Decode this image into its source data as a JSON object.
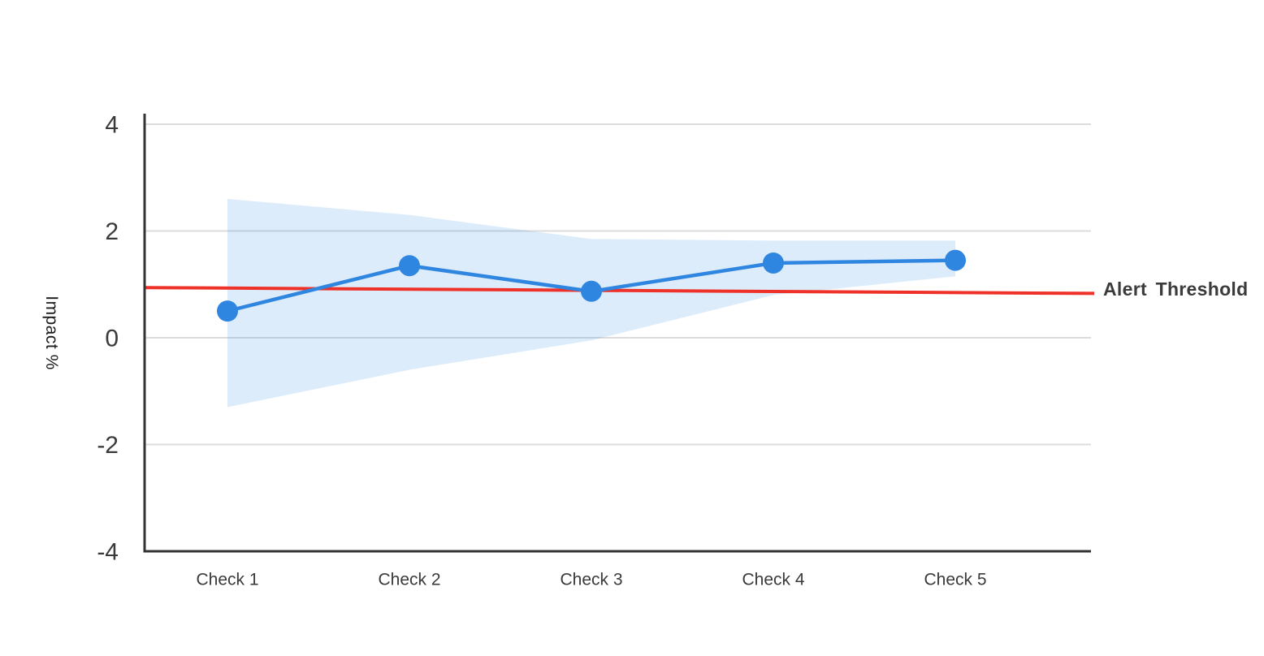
{
  "chart_data": {
    "type": "line",
    "title": "",
    "xlabel": "",
    "ylabel": "Impact %",
    "categories": [
      "Check 1",
      "Check 2",
      "Check 3",
      "Check 4",
      "Check 5"
    ],
    "series": [
      {
        "name": "impact",
        "values": [
          0.5,
          1.35,
          0.87,
          1.4,
          1.45
        ],
        "marker": "circle"
      }
    ],
    "band": {
      "name": "confidence-band",
      "upper": [
        2.6,
        2.3,
        1.85,
        1.82,
        1.82
      ],
      "lower": [
        -1.3,
        -0.6,
        -0.05,
        0.8,
        1.15
      ]
    },
    "threshold": {
      "label": "Alert Threshold",
      "start_value": 0.94,
      "end_value": 0.83
    },
    "ylim": [
      -4,
      4
    ],
    "yticks": [
      4,
      2,
      0,
      -2,
      -4
    ],
    "grid": true,
    "legend_position": "threshold label right of line",
    "colors": {
      "line": "#2e86e0",
      "marker": "#2e86e0",
      "band_fill": "#2e86e0",
      "band_opacity": "0.16",
      "threshold": "#ef3229",
      "grid": "#dcdcdc",
      "axis": "#333333",
      "tick_text": "#3a3a3a",
      "label_text": "#1c1c1c",
      "threshold_text": "#3b3b3b",
      "background": "#ffffff"
    }
  }
}
